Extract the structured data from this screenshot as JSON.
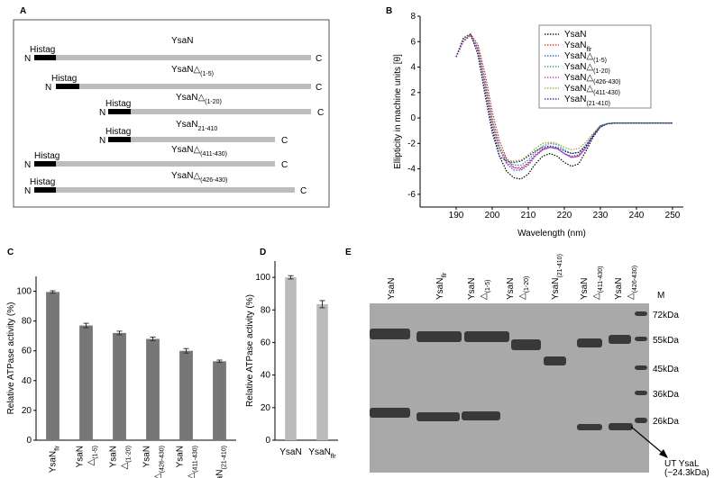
{
  "diagram": {
    "panel_label": "A",
    "constructs": [
      {
        "label": {
          "main": "YsaN"
        },
        "n": "N",
        "c": "C",
        "tag": "Histag"
      },
      {
        "label": {
          "main": "YsaN",
          "delta": "△",
          "sub": "(1-5)"
        },
        "n": "N",
        "c": "C",
        "tag": "Histag"
      },
      {
        "label": {
          "main": "YsaN",
          "delta": "△",
          "sub": "(1-20)"
        },
        "n": "N",
        "c": "C",
        "tag": "Histag"
      },
      {
        "label": {
          "main": "YsaN",
          "sub": "21-410"
        },
        "n": "N",
        "c": "C",
        "tag": "Histag"
      },
      {
        "label": {
          "main": "YsaN",
          "delta": "△",
          "sub": "(411-430)"
        },
        "n": "N",
        "c": "C",
        "tag": "Histag"
      },
      {
        "label": {
          "main": "YsaN",
          "delta": "△",
          "sub": "(426-430)"
        },
        "n": "N",
        "c": "C",
        "tag": "Histag"
      }
    ]
  },
  "gel": {
    "panel_label": "E",
    "lanes": [
      {
        "main": "YsaN"
      },
      {
        "main": "YsaN",
        "sub": "flr"
      },
      {
        "main": "YsaN",
        "delta": "△",
        "sub": "(1-5)"
      },
      {
        "main": "YsaN",
        "delta": "△",
        "sub": "(1-20)"
      },
      {
        "main": "YsaN",
        "sub": "(21-410)"
      },
      {
        "main": "YsaN",
        "delta": "△",
        "sub": "(411-430)"
      },
      {
        "main": "YsaN",
        "delta": "△",
        "sub": "(426-430)"
      }
    ],
    "marker_lane": "M",
    "markers": [
      "72kDa",
      "55kDa",
      "45kDa",
      "36kDa",
      "26kDa"
    ],
    "annotation": [
      "UT YsaL",
      "(~24.3kDa)"
    ]
  },
  "chart_data": [
    {
      "type": "line",
      "panel_label": "B",
      "xlabel": "Wavelength (nm)",
      "ylabel": "Ellipticity in machine units [θ]",
      "xlim": [
        180,
        253
      ],
      "xticks": [
        190,
        200,
        210,
        220,
        230,
        240,
        250
      ],
      "ylim": [
        -7,
        8
      ],
      "yticks": [
        -6,
        -4,
        -2,
        0,
        2,
        4,
        6,
        8
      ],
      "legend": "upper right",
      "x": [
        190,
        192,
        194,
        196,
        198,
        200,
        202,
        204,
        206,
        208,
        210,
        212,
        214,
        216,
        218,
        220,
        222,
        224,
        226,
        228,
        230,
        232,
        234,
        240,
        245,
        250
      ],
      "series": [
        {
          "name": {
            "main": "YsaN"
          },
          "color": "#000000",
          "values": [
            4.8,
            6.2,
            6.5,
            5.2,
            2.2,
            -0.8,
            -3.0,
            -4.2,
            -4.7,
            -4.8,
            -4.4,
            -3.6,
            -3.0,
            -2.8,
            -3.0,
            -3.5,
            -3.8,
            -3.6,
            -2.6,
            -1.5,
            -0.7,
            -0.45,
            -0.4,
            -0.4,
            -0.4,
            -0.4
          ]
        },
        {
          "name": {
            "main": "YsaN",
            "sub": "flr"
          },
          "color": "#e02020",
          "values": [
            4.8,
            6.0,
            6.6,
            5.8,
            3.5,
            0.5,
            -1.8,
            -3.2,
            -3.9,
            -4.0,
            -3.6,
            -2.9,
            -2.4,
            -2.3,
            -2.4,
            -2.8,
            -3.0,
            -2.9,
            -2.2,
            -1.3,
            -0.6,
            -0.45,
            -0.4,
            -0.4,
            -0.4,
            -0.4
          ]
        },
        {
          "name": {
            "main": "YsaN",
            "delta": "△",
            "sub": "(1-5)"
          },
          "color": "#2a4fd8",
          "values": [
            4.8,
            6.1,
            6.5,
            5.5,
            2.8,
            -0.2,
            -2.4,
            -3.6,
            -4.1,
            -4.1,
            -3.7,
            -3.0,
            -2.5,
            -2.3,
            -2.4,
            -2.8,
            -3.1,
            -3.0,
            -2.3,
            -1.4,
            -0.65,
            -0.45,
            -0.4,
            -0.4,
            -0.4,
            -0.4
          ]
        },
        {
          "name": {
            "main": "YsaN",
            "delta": "△",
            "sub": "(1-20)"
          },
          "color": "#1a9a9a",
          "values": [
            4.8,
            6.1,
            6.5,
            5.6,
            3.0,
            0.0,
            -2.2,
            -3.3,
            -3.7,
            -3.7,
            -3.3,
            -2.7,
            -2.2,
            -2.0,
            -2.1,
            -2.5,
            -2.8,
            -2.7,
            -2.1,
            -1.3,
            -0.6,
            -0.45,
            -0.4,
            -0.4,
            -0.4,
            -0.4
          ]
        },
        {
          "name": {
            "main": "YsaN",
            "delta": "△",
            "sub": "(426-430)"
          },
          "color": "#d020d0",
          "values": [
            4.8,
            6.0,
            6.5,
            5.4,
            2.6,
            -0.3,
            -2.5,
            -3.5,
            -3.9,
            -3.9,
            -3.5,
            -2.9,
            -2.5,
            -2.3,
            -2.4,
            -2.8,
            -3.1,
            -3.0,
            -2.4,
            -1.4,
            -0.65,
            -0.45,
            -0.4,
            -0.4,
            -0.4,
            -0.4
          ]
        },
        {
          "name": {
            "main": "YsaN",
            "delta": "△",
            "sub": "(411-430)"
          },
          "color": "#a0a020",
          "values": [
            4.8,
            6.2,
            6.5,
            5.3,
            2.4,
            -0.5,
            -2.5,
            -3.3,
            -3.4,
            -3.3,
            -2.9,
            -2.4,
            -2.0,
            -1.9,
            -2.0,
            -2.3,
            -2.5,
            -2.4,
            -1.9,
            -1.2,
            -0.6,
            -0.45,
            -0.4,
            -0.4,
            -0.4,
            -0.4
          ]
        },
        {
          "name": {
            "main": "YsaN",
            "sub": "(21-410)"
          },
          "color": "#1a1a80",
          "values": [
            4.8,
            6.3,
            6.6,
            5.0,
            1.8,
            -1.2,
            -3.0,
            -3.4,
            -3.5,
            -3.4,
            -3.0,
            -2.6,
            -2.3,
            -2.2,
            -2.3,
            -2.6,
            -2.8,
            -2.7,
            -2.2,
            -1.4,
            -0.7,
            -0.45,
            -0.4,
            -0.4,
            -0.4,
            -0.4
          ]
        }
      ]
    },
    {
      "type": "bar",
      "panel_label": "C",
      "ylabel": "Relative ATPase activity (%)",
      "categories": [
        {
          "main": "YsaN",
          "sub": "flr"
        },
        {
          "main": "YsaN",
          "delta": "△",
          "sub": "(1-5)"
        },
        {
          "main": "YsaN",
          "delta": "△",
          "sub": "(1-20)"
        },
        {
          "main": "YsaN",
          "delta": "△",
          "sub": "(426-430)"
        },
        {
          "main": "YsaN",
          "delta": "△",
          "sub": "(411-430)"
        },
        {
          "main": "YsaN",
          "sub": "(21-410)"
        }
      ],
      "values": [
        99.5,
        77,
        72,
        68,
        60,
        53
      ],
      "errors": [
        0.8,
        1.5,
        1.2,
        1.2,
        1.5,
        0.8
      ],
      "color": "#777777",
      "ylim": [
        0,
        110
      ],
      "yticks": [
        0,
        20,
        40,
        60,
        80,
        100
      ]
    },
    {
      "type": "bar",
      "panel_label": "D",
      "ylabel": "Relative ATPase activity (%)",
      "categories": [
        {
          "main": "YsaN"
        },
        {
          "main": "YsaN",
          "sub": "flr"
        }
      ],
      "values": [
        100,
        83.5
      ],
      "errors": [
        1.0,
        2.2
      ],
      "color": "#bbbbbb",
      "ylim": [
        0,
        110
      ],
      "yticks": [
        0,
        20,
        40,
        60,
        80,
        100
      ]
    }
  ]
}
